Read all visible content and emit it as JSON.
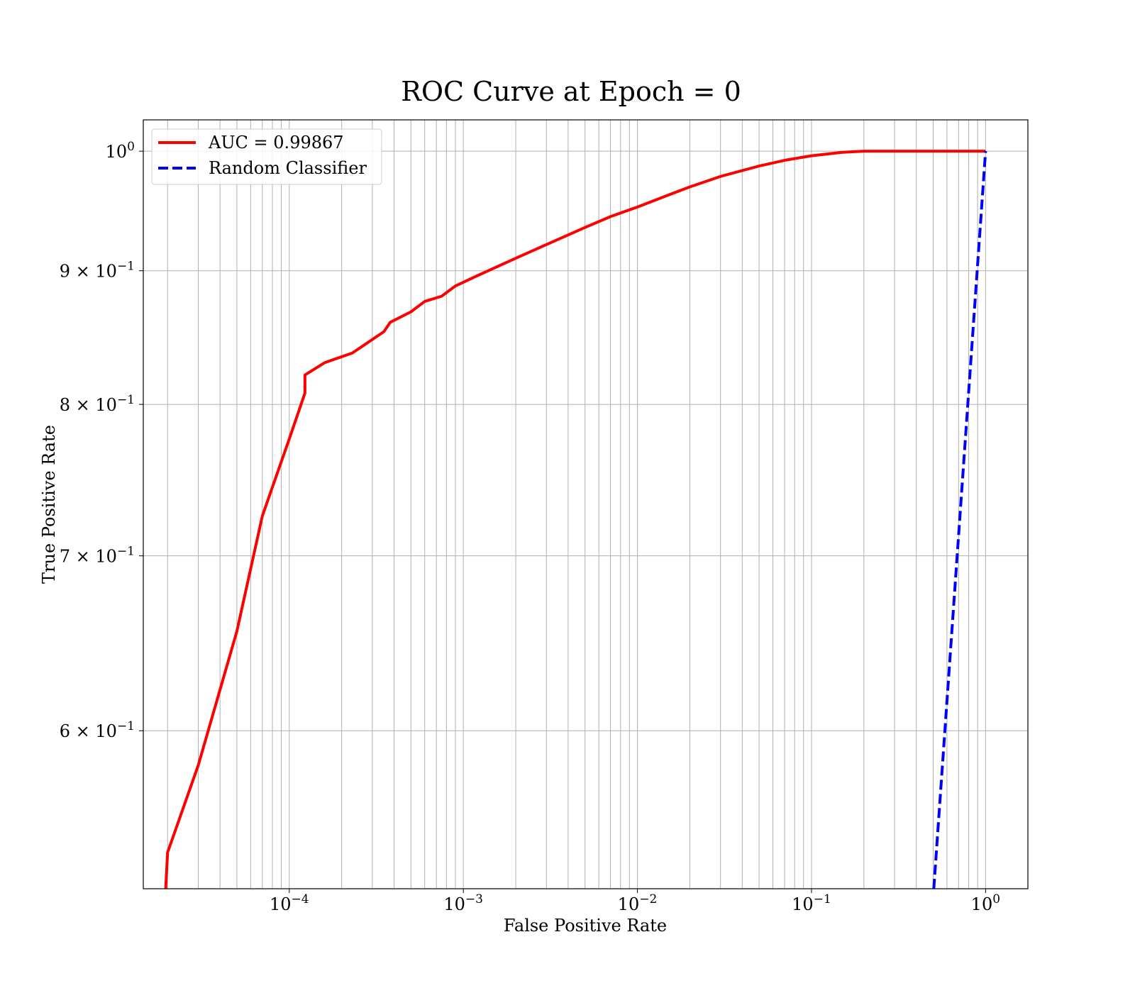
{
  "chart_data": {
    "type": "line",
    "title": "ROC Curve at Epoch = 0",
    "xlabel": "False Positive Rate",
    "ylabel": "True Positive Rate",
    "xscale": "log",
    "yscale": "log",
    "xlim": [
      1.45e-05,
      1.75
    ],
    "ylim": [
      0.522,
      1.028
    ],
    "grid": true,
    "grid_minor": true,
    "legend_position": "top-left",
    "x_ticks": [
      {
        "value": 0.0001,
        "base": "10",
        "exp": "−4"
      },
      {
        "value": 0.001,
        "base": "10",
        "exp": "−3"
      },
      {
        "value": 0.01,
        "base": "10",
        "exp": "−2"
      },
      {
        "value": 0.1,
        "base": "10",
        "exp": "−1"
      },
      {
        "value": 1,
        "base": "10",
        "exp": "0"
      }
    ],
    "y_ticks": [
      {
        "value": 0.6,
        "base": "6 × 10",
        "exp": "−1"
      },
      {
        "value": 0.7,
        "base": "7 × 10",
        "exp": "−1"
      },
      {
        "value": 0.8,
        "base": "8 × 10",
        "exp": "−1"
      },
      {
        "value": 0.9,
        "base": "9 × 10",
        "exp": "−1"
      },
      {
        "value": 1.0,
        "base": "10",
        "exp": "0"
      }
    ],
    "series": [
      {
        "name": "AUC = 0.99867",
        "color": "#ff0000",
        "dash": "solid",
        "points": [
          [
            1.95e-05,
            0.522
          ],
          [
            2e-05,
            0.539
          ],
          [
            3e-05,
            0.582
          ],
          [
            5e-05,
            0.655
          ],
          [
            7e-05,
            0.725
          ],
          [
            0.0001,
            0.776
          ],
          [
            0.000123,
            0.808
          ],
          [
            0.000123,
            0.821
          ],
          [
            0.00016,
            0.83
          ],
          [
            0.00023,
            0.837
          ],
          [
            0.00035,
            0.853
          ],
          [
            0.00038,
            0.86
          ],
          [
            0.0005,
            0.868
          ],
          [
            0.0006,
            0.876
          ],
          [
            0.00075,
            0.88
          ],
          [
            0.0009,
            0.888
          ],
          [
            0.0012,
            0.896
          ],
          [
            0.002,
            0.91
          ],
          [
            0.003,
            0.921
          ],
          [
            0.005,
            0.935
          ],
          [
            0.007,
            0.944
          ],
          [
            0.01,
            0.952
          ],
          [
            0.015,
            0.962
          ],
          [
            0.02,
            0.969
          ],
          [
            0.03,
            0.978
          ],
          [
            0.05,
            0.987
          ],
          [
            0.07,
            0.992
          ],
          [
            0.1,
            0.996
          ],
          [
            0.15,
            0.999
          ],
          [
            0.2,
            1.0
          ],
          [
            1.0,
            1.0
          ]
        ]
      },
      {
        "name": "Random Classifier",
        "color": "#0000ff",
        "dash": "dashed",
        "points": [
          [
            0.504,
            0.522
          ],
          [
            1.0,
            1.0
          ]
        ]
      }
    ]
  }
}
